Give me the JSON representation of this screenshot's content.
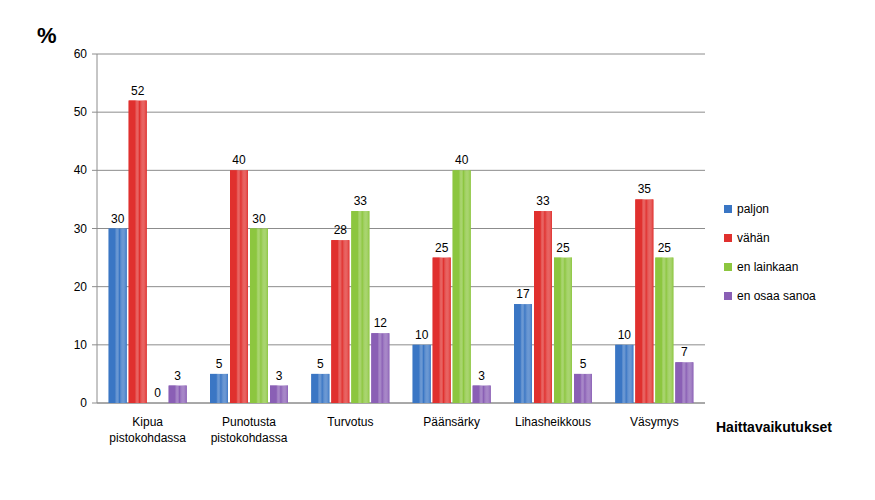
{
  "chart_data": {
    "type": "bar",
    "y_label": "%",
    "x_label": "Haittavaikutukset",
    "categories": [
      "Kipua pistokohdassa",
      "Punotusta pistokohdassa",
      "Turvotus",
      "Päänsärky",
      "Lihasheikkous",
      "Väsymys"
    ],
    "series": [
      {
        "name": "paljon",
        "color": "#3a76c4",
        "values": [
          30,
          5,
          5,
          10,
          17,
          10
        ]
      },
      {
        "name": "vähän",
        "color": "#e0302e",
        "values": [
          52,
          40,
          28,
          25,
          33,
          35
        ]
      },
      {
        "name": "en lainkaan",
        "color": "#8cc63f",
        "values": [
          0,
          30,
          33,
          40,
          25,
          25
        ]
      },
      {
        "name": "en osaa sanoa",
        "color": "#8a5fb5",
        "values": [
          3,
          3,
          12,
          3,
          5,
          7
        ]
      }
    ],
    "ylim": [
      0,
      60
    ],
    "yticks": [
      0,
      10,
      20,
      30,
      40,
      50,
      60
    ],
    "grid": true,
    "legend": "right",
    "data_labels": true
  }
}
